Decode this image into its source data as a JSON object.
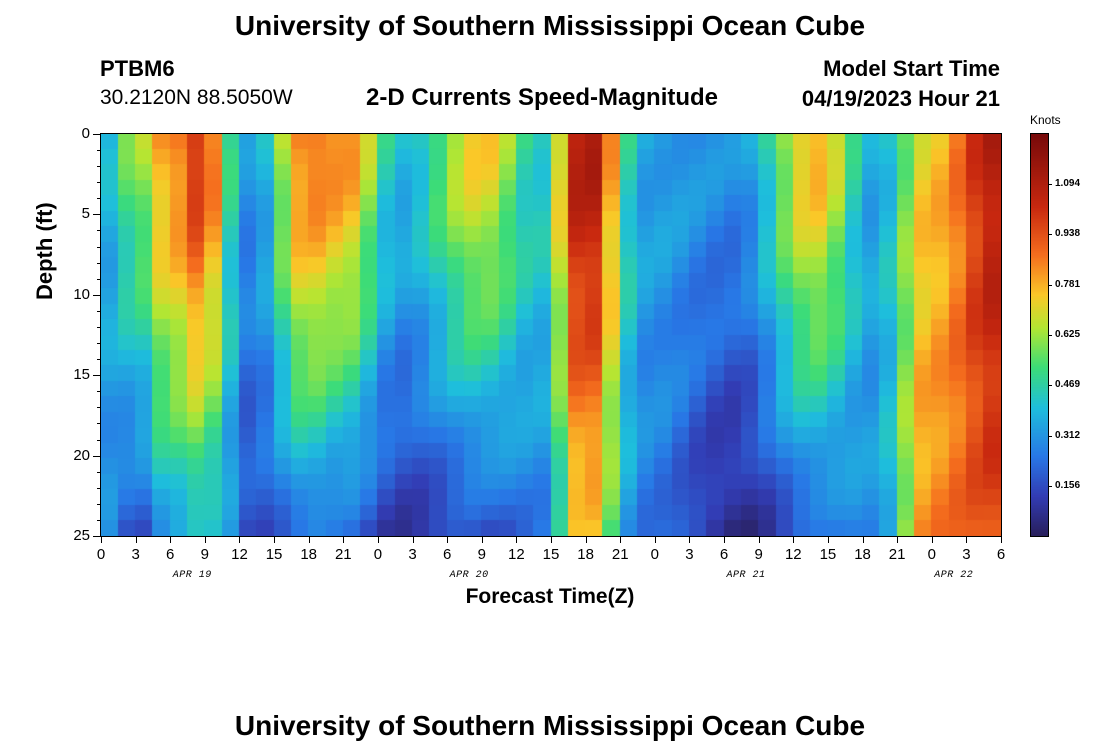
{
  "header": {
    "title": "University of Southern Mississippi Ocean Cube",
    "station": "PTBM6",
    "coords": "30.2120N  88.5050W",
    "chart_title": "2-D Currents Speed-Magnitude",
    "model_label": "Model Start Time",
    "model_time": "04/19/2023 Hour 21"
  },
  "footer": {
    "title": "University of Southern Mississippi Ocean Cube"
  },
  "chart_data": {
    "type": "heatmap",
    "title": "2-D Currents Speed-Magnitude",
    "xlabel": "Forecast Time(Z)",
    "ylabel": "Depth (ft)",
    "colorbar_label": "Knots",
    "colorbar_ticks": [
      "1.094",
      "0.938",
      "0.781",
      "0.625",
      "0.469",
      "0.312",
      "0.156"
    ],
    "colorbar_tick_values": [
      1.094,
      0.938,
      0.781,
      0.625,
      0.469,
      0.312,
      0.156
    ],
    "colorbar_range": [
      0.0,
      1.25
    ],
    "y_ticks": [
      "0",
      "5",
      "10",
      "15",
      "20",
      "25"
    ],
    "ylim": [
      0,
      25
    ],
    "x_ticks": [
      "0",
      "3",
      "6",
      "9",
      "12",
      "15",
      "18",
      "21",
      "0",
      "3",
      "6",
      "9",
      "12",
      "15",
      "18",
      "21",
      "0",
      "3",
      "6",
      "9",
      "12",
      "15",
      "18",
      "21",
      "0",
      "3",
      "6"
    ],
    "xlim_hours": [
      0,
      78
    ],
    "dates": [
      {
        "label": "APR 19",
        "hour": 6
      },
      {
        "label": "APR 20",
        "hour": 30
      },
      {
        "label": "APR 21",
        "hour": 54
      },
      {
        "label": "APR 22",
        "hour": 72
      }
    ],
    "speed_features": [
      {
        "hour": 0,
        "surface": 0.35,
        "bottom": 0.3
      },
      {
        "hour": 3,
        "surface": 0.6,
        "bottom": 0.15
      },
      {
        "hour": 6,
        "surface": 0.85,
        "bottom": 0.35
      },
      {
        "hour": 9,
        "surface": 1.05,
        "bottom": 0.4
      },
      {
        "hour": 11,
        "surface": 0.5,
        "bottom": 0.3
      },
      {
        "hour": 13,
        "surface": 0.3,
        "bottom": 0.15
      },
      {
        "hour": 18,
        "surface": 0.9,
        "bottom": 0.25
      },
      {
        "hour": 21,
        "surface": 0.85,
        "bottom": 0.2
      },
      {
        "hour": 26,
        "surface": 0.4,
        "bottom": 0.1
      },
      {
        "hour": 33,
        "surface": 0.75,
        "bottom": 0.15
      },
      {
        "hour": 38,
        "surface": 0.45,
        "bottom": 0.25
      },
      {
        "hour": 42,
        "surface": 1.15,
        "bottom": 0.75
      },
      {
        "hour": 47,
        "surface": 0.35,
        "bottom": 0.25
      },
      {
        "hour": 55,
        "surface": 0.3,
        "bottom": 0.05
      },
      {
        "hour": 62,
        "surface": 0.8,
        "bottom": 0.2
      },
      {
        "hour": 67,
        "surface": 0.35,
        "bottom": 0.3
      },
      {
        "hour": 72,
        "surface": 0.75,
        "bottom": 0.85
      },
      {
        "hour": 78,
        "surface": 1.1,
        "bottom": 0.95
      }
    ]
  }
}
